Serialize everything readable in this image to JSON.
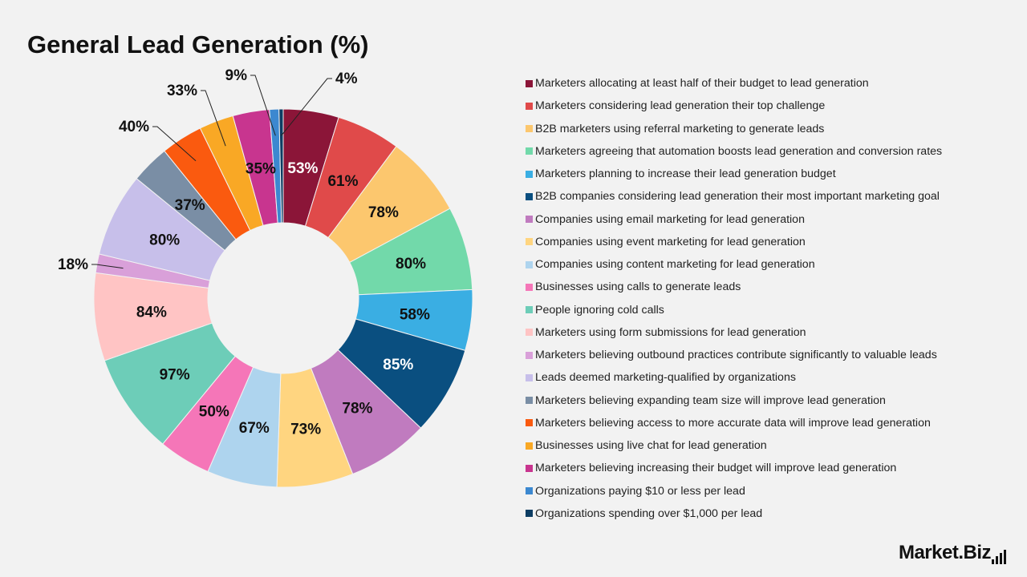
{
  "chart_data": {
    "type": "pie",
    "title": "General Lead Generation (%)",
    "categories": [
      "Marketers allocating at least half of their budget to lead generation",
      "Marketers considering lead generation their top challenge",
      "B2B marketers using referral marketing to generate leads",
      "Marketers agreeing that automation boosts lead generation and conversion rates",
      "Marketers planning to increase their lead generation budget",
      "B2B companies considering lead generation their most important marketing goal",
      "Companies using email marketing for lead generation",
      "Companies using event marketing for lead generation",
      "Companies using content marketing for lead generation",
      "Businesses using calls to generate leads",
      "People ignoring cold calls",
      "Marketers using form submissions for lead generation",
      "Marketers believing outbound practices contribute significantly to valuable leads",
      "Leads deemed marketing-qualified by organizations",
      "Marketers believing expanding team size will improve lead generation",
      "Marketers believing access to more accurate data will improve lead generation",
      "Businesses using live chat for lead generation",
      "Marketers believing increasing their budget will improve lead generation",
      "Organizations paying $10 or less per lead",
      "Organizations spending over $1,000 per lead"
    ],
    "values": [
      53,
      61,
      78,
      80,
      58,
      85,
      78,
      73,
      67,
      50,
      97,
      84,
      18,
      80,
      37,
      40,
      33,
      35,
      9,
      4
    ],
    "labels": [
      "53%",
      "61%",
      "78%",
      "80%",
      "58%",
      "85%",
      "78%",
      "73%",
      "67%",
      "50%",
      "97%",
      "84%",
      "18%",
      "80%",
      "37%",
      "40%",
      "33%",
      "35%",
      "9%",
      "4%"
    ],
    "colors": [
      "#8b1538",
      "#e04a4a",
      "#fcc76e",
      "#72d9aa",
      "#3aaee3",
      "#0a4f80",
      "#c07bbf",
      "#ffd580",
      "#aed4ee",
      "#f576b8",
      "#6dcdb8",
      "#ffc4c4",
      "#d9a0d9",
      "#c7bfea",
      "#7a8ea5",
      "#fa5a0f",
      "#f9a825",
      "#c8358f",
      "#3c88d0",
      "#0d3d63"
    ],
    "legend_position": "right"
  },
  "brand": {
    "name": "Market.Biz"
  }
}
